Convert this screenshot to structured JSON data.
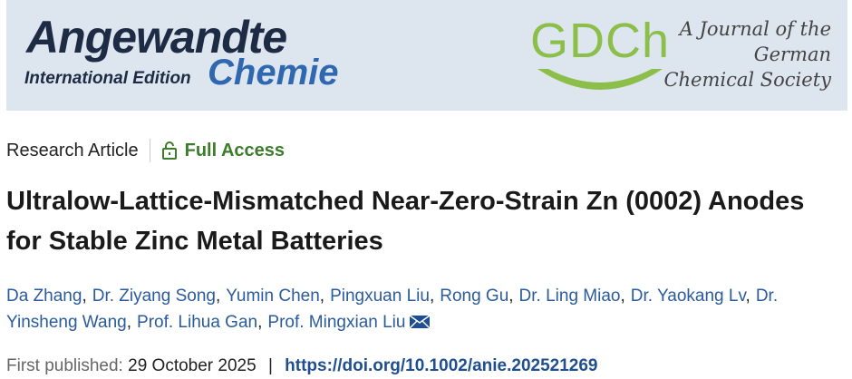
{
  "banner": {
    "journal": "Angewandte",
    "edition": "International Edition",
    "journal_sub": "Chemie",
    "society_logo": "GDCh",
    "society_lines": [
      "A Journal of the",
      "German",
      "Chemical Society"
    ]
  },
  "article": {
    "type": "Research Article",
    "access": "Full Access",
    "title": "Ultralow-Lattice-Mismatched Near-Zero-Strain Zn (0002) Anodes for Stable Zinc Metal Batteries",
    "authors": [
      "Da Zhang",
      "Dr. Ziyang Song",
      "Yumin Chen",
      "Pingxuan Liu",
      "Rong Gu",
      "Dr. Ling Miao",
      "Dr. Yaokang Lv",
      "Dr. Yinsheng Wang",
      "Prof. Lihua Gan",
      "Prof. Mingxian Liu"
    ],
    "author_separator": ",",
    "published_label": "First published:",
    "published_date": "29 October 2025",
    "meta_separator": "|",
    "doi": "https://doi.org/10.1002/anie.202521269"
  }
}
